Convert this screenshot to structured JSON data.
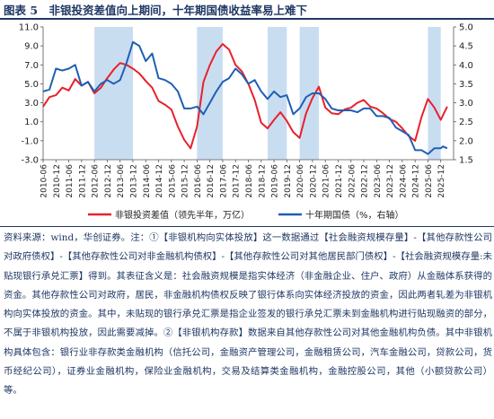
{
  "header": {
    "title": "图表 5　非银投资差值向上期间，十年期国债收益率易上难下"
  },
  "source_note": "资料来源：wind，华创证券。注：①【非银机构向实体投放】这一数据通过【社会融资规模存量】-【其他存款性公司对政府债权】-【其他存款性公司对非金融机构债权】-【其他存款性公司对其他居民部门债权】-【社会融资规模存量:未贴现银行承兑汇票】得到。其表征含义是：社会融资规模是指实体经济（非金融企业、住户、政府）从金融体系获得的资金。其他存款性公司对政府，居民，非金融机构债权反映了银行体系向实体经济投放的资金，因此两者轧差为非银机构向实体投放的资金。其中，未贴现的银行承兑汇票是指企业签发的银行承兑汇票未到金融机构进行贴现融资的部分，不属于非银机构投放，因此需要减掉。②【非银机构存款】数据来自其他存款性公司对其他金融机构负债。其中非银机构具体包含：银行业非存款类金融机构（信托公司，金融资产管理公司，金融租赁公司，汽车金融公司，贷款公司，货币经纪公司），证券业金融机构，保险业金融机构，交易及结算类金融机构，金融控股公司，其他（小额贷款公司）等。",
  "chart_data": {
    "type": "line",
    "left_axis": {
      "ylim": [
        -3.0,
        11.0
      ],
      "ticks": [
        "11.0",
        "9.0",
        "7.0",
        "5.0",
        "3.0",
        "1.0",
        "-1.0",
        "-3.0"
      ]
    },
    "right_axis": {
      "ylim": [
        1.5,
        5.0
      ],
      "ticks": [
        "5.0",
        "4.5",
        "4.0",
        "3.5",
        "3.0",
        "2.5",
        "2.0",
        "1.5"
      ]
    },
    "x_tick_labels": [
      "2010-06",
      "2010-12",
      "2011-06",
      "2011-12",
      "2012-06",
      "2012-12",
      "2013-06",
      "2013-12",
      "2014-06",
      "2014-12",
      "2015-06",
      "2015-12",
      "2016-06",
      "2016-12",
      "2017-06",
      "2017-12",
      "2018-06",
      "2018-12",
      "2019-06",
      "2019-12",
      "2020-06",
      "2020-12",
      "2021-06",
      "2021-12",
      "2022-06",
      "2022-12",
      "2023-06",
      "2023-12",
      "2024-06",
      "2024-12",
      "2025-06",
      "2025-12"
    ],
    "shaded_periods": [
      [
        "2012-06",
        "2013-12"
      ],
      [
        "2016-06",
        "2017-06"
      ],
      [
        "2019-03",
        "2019-12"
      ],
      [
        "2020-06",
        "2021-03"
      ],
      [
        "2025-06",
        "2025-12"
      ]
    ],
    "legend_position": "bottom",
    "series": [
      {
        "name": "非银投资差值（领先半年，万亿）",
        "axis": "left",
        "color": "#e8212a",
        "points": [
          [
            "2010-06",
            2.6
          ],
          [
            "2010-09",
            3.6
          ],
          [
            "2010-12",
            3.8
          ],
          [
            "2011-03",
            4.6
          ],
          [
            "2011-06",
            4.3
          ],
          [
            "2011-09",
            5.5
          ],
          [
            "2011-12",
            4.8
          ],
          [
            "2012-03",
            5.2
          ],
          [
            "2012-06",
            4.0
          ],
          [
            "2012-09",
            4.6
          ],
          [
            "2012-12",
            5.6
          ],
          [
            "2013-03",
            6.5
          ],
          [
            "2013-06",
            7.2
          ],
          [
            "2013-09",
            7.0
          ],
          [
            "2013-12",
            6.6
          ],
          [
            "2014-03",
            6.1
          ],
          [
            "2014-06",
            5.3
          ],
          [
            "2014-09",
            4.6
          ],
          [
            "2014-12",
            3.2
          ],
          [
            "2015-03",
            2.8
          ],
          [
            "2015-06",
            2.3
          ],
          [
            "2015-09",
            0.5
          ],
          [
            "2015-12",
            -0.9
          ],
          [
            "2016-03",
            -1.8
          ],
          [
            "2016-06",
            0.5
          ],
          [
            "2016-09",
            5.2
          ],
          [
            "2016-12",
            7.0
          ],
          [
            "2017-03",
            8.4
          ],
          [
            "2017-06",
            9.2
          ],
          [
            "2017-09",
            8.6
          ],
          [
            "2017-12",
            7.0
          ],
          [
            "2018-03",
            6.3
          ],
          [
            "2018-06",
            5.0
          ],
          [
            "2018-09",
            3.3
          ],
          [
            "2018-12",
            0.9
          ],
          [
            "2019-03",
            0.3
          ],
          [
            "2019-06",
            1.2
          ],
          [
            "2019-09",
            2.0
          ],
          [
            "2019-12",
            1.1
          ],
          [
            "2020-03",
            -0.1
          ],
          [
            "2020-06",
            -0.7
          ],
          [
            "2020-09",
            1.9
          ],
          [
            "2020-12",
            3.5
          ],
          [
            "2021-03",
            4.7
          ],
          [
            "2021-06",
            2.5
          ],
          [
            "2021-09",
            1.9
          ],
          [
            "2021-12",
            1.8
          ],
          [
            "2022-03",
            2.3
          ],
          [
            "2022-06",
            2.5
          ],
          [
            "2022-09",
            3.0
          ],
          [
            "2022-12",
            3.3
          ],
          [
            "2023-03",
            2.6
          ],
          [
            "2023-06",
            2.4
          ],
          [
            "2023-09",
            1.9
          ],
          [
            "2023-12",
            1.3
          ],
          [
            "2024-03",
            1.0
          ],
          [
            "2024-06",
            0.3
          ],
          [
            "2024-09",
            -0.5
          ],
          [
            "2024-12",
            -1.0
          ],
          [
            "2025-03",
            1.5
          ],
          [
            "2025-06",
            3.4
          ],
          [
            "2025-09",
            2.5
          ],
          [
            "2025-12",
            1.2
          ],
          [
            "2026-03",
            2.6
          ]
        ]
      },
      {
        "name": "十年期国债（%，右轴）",
        "axis": "right",
        "color": "#1f5fb4",
        "points": [
          [
            "2010-06",
            3.3
          ],
          [
            "2010-09",
            3.35
          ],
          [
            "2010-12",
            3.9
          ],
          [
            "2011-03",
            3.85
          ],
          [
            "2011-06",
            3.9
          ],
          [
            "2011-09",
            4.0
          ],
          [
            "2011-12",
            3.45
          ],
          [
            "2012-03",
            3.55
          ],
          [
            "2012-06",
            3.3
          ],
          [
            "2012-09",
            3.5
          ],
          [
            "2012-12",
            3.6
          ],
          [
            "2013-03",
            3.5
          ],
          [
            "2013-06",
            3.6
          ],
          [
            "2013-09",
            4.05
          ],
          [
            "2013-12",
            4.6
          ],
          [
            "2014-03",
            4.5
          ],
          [
            "2014-06",
            4.1
          ],
          [
            "2014-09",
            4.3
          ],
          [
            "2014-12",
            3.65
          ],
          [
            "2015-03",
            3.6
          ],
          [
            "2015-06",
            3.5
          ],
          [
            "2015-09",
            3.3
          ],
          [
            "2015-12",
            2.85
          ],
          [
            "2016-03",
            2.85
          ],
          [
            "2016-06",
            2.9
          ],
          [
            "2016-09",
            2.7
          ],
          [
            "2016-12",
            3.0
          ],
          [
            "2017-03",
            3.3
          ],
          [
            "2017-06",
            3.55
          ],
          [
            "2017-09",
            3.65
          ],
          [
            "2017-12",
            3.9
          ],
          [
            "2018-03",
            3.75
          ],
          [
            "2018-06",
            3.5
          ],
          [
            "2018-09",
            3.6
          ],
          [
            "2018-12",
            3.3
          ],
          [
            "2019-03",
            3.1
          ],
          [
            "2019-06",
            3.3
          ],
          [
            "2019-09",
            3.15
          ],
          [
            "2019-12",
            3.2
          ],
          [
            "2020-03",
            2.7
          ],
          [
            "2020-06",
            2.85
          ],
          [
            "2020-09",
            3.15
          ],
          [
            "2020-12",
            3.25
          ],
          [
            "2021-03",
            3.25
          ],
          [
            "2021-06",
            3.1
          ],
          [
            "2021-09",
            2.85
          ],
          [
            "2021-12",
            2.8
          ],
          [
            "2022-03",
            2.8
          ],
          [
            "2022-06",
            2.8
          ],
          [
            "2022-09",
            2.75
          ],
          [
            "2022-12",
            2.85
          ],
          [
            "2023-03",
            2.85
          ],
          [
            "2023-06",
            2.65
          ],
          [
            "2023-09",
            2.65
          ],
          [
            "2023-12",
            2.6
          ],
          [
            "2024-03",
            2.35
          ],
          [
            "2024-06",
            2.25
          ],
          [
            "2024-09",
            2.15
          ],
          [
            "2024-12",
            1.75
          ],
          [
            "2025-03",
            1.75
          ],
          [
            "2025-06",
            1.65
          ],
          [
            "2025-09",
            1.8
          ],
          [
            "2025-12",
            1.8
          ],
          [
            "2026-01",
            1.85
          ],
          [
            "2026-03",
            1.8
          ]
        ]
      }
    ]
  }
}
